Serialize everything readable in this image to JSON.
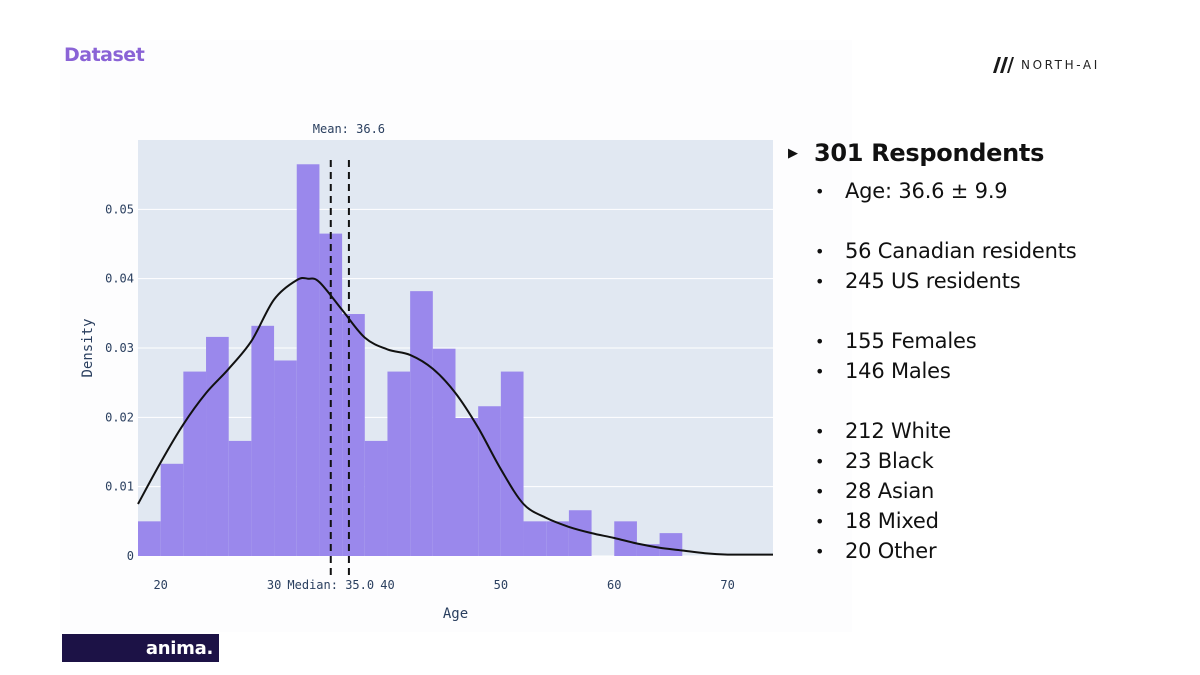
{
  "slide": {
    "title": "Dataset",
    "brand": "NORTH-AI",
    "footer_brand": "anima."
  },
  "stats": {
    "heading": "301 Respondents",
    "groups": [
      [
        "Age: 36.6 ± 9.9"
      ],
      [
        "56 Canadian residents",
        "245 US residents"
      ],
      [
        "155 Females",
        "146 Males"
      ],
      [
        "212 White",
        "23 Black",
        "28 Asian",
        "18 Mixed",
        "20 Other"
      ]
    ]
  },
  "chart_data": {
    "type": "bar",
    "xlabel": "Age",
    "ylabel": "Density",
    "xlim": [
      18,
      74
    ],
    "ylim": [
      0,
      0.06
    ],
    "x_ticks": [
      20,
      30,
      40,
      50,
      60,
      70
    ],
    "y_ticks": [
      0,
      0.01,
      0.02,
      0.03,
      0.04,
      0.05
    ],
    "y_tick_labels": [
      "0",
      "0.01",
      "0.02",
      "0.03",
      "0.04",
      "0.05"
    ],
    "bin_width": 2,
    "bins_start": [
      18,
      20,
      22,
      24,
      26,
      28,
      30,
      32,
      34,
      36,
      38,
      40,
      42,
      44,
      46,
      48,
      50,
      52,
      54,
      56,
      58,
      60,
      62,
      64
    ],
    "density": [
      0.005,
      0.0133,
      0.0266,
      0.0316,
      0.0166,
      0.0332,
      0.0282,
      0.0565,
      0.0465,
      0.0349,
      0.0166,
      0.0266,
      0.0382,
      0.0299,
      0.0199,
      0.0216,
      0.0266,
      0.005,
      0.005,
      0.0066,
      0,
      0.005,
      0.0017,
      0.0033
    ],
    "kde": {
      "x": [
        18,
        20,
        22,
        24,
        26,
        28,
        30,
        32,
        33,
        34,
        36,
        38,
        40,
        42,
        44,
        46,
        48,
        50,
        52,
        54,
        56,
        58,
        60,
        62,
        64,
        66,
        68,
        70,
        72,
        74
      ],
      "y": [
        0.0075,
        0.0135,
        0.019,
        0.0235,
        0.027,
        0.031,
        0.037,
        0.0398,
        0.04,
        0.0395,
        0.0355,
        0.0315,
        0.0298,
        0.029,
        0.027,
        0.0235,
        0.0185,
        0.0125,
        0.0075,
        0.0055,
        0.0042,
        0.0033,
        0.0026,
        0.0018,
        0.0012,
        0.0008,
        0.0004,
        0.0002,
        0.0002,
        0.0002
      ]
    },
    "reference_lines": [
      {
        "label": "Mean: 36.6",
        "value": 36.6,
        "label_position": "top"
      },
      {
        "label": "Median: 35.0",
        "value": 35.0,
        "label_position": "bottom"
      }
    ],
    "colors": {
      "bars": "#9a88ec",
      "plot_background": "#e1e8f2",
      "kde": "#111111",
      "reference_lines": "#111111"
    }
  }
}
